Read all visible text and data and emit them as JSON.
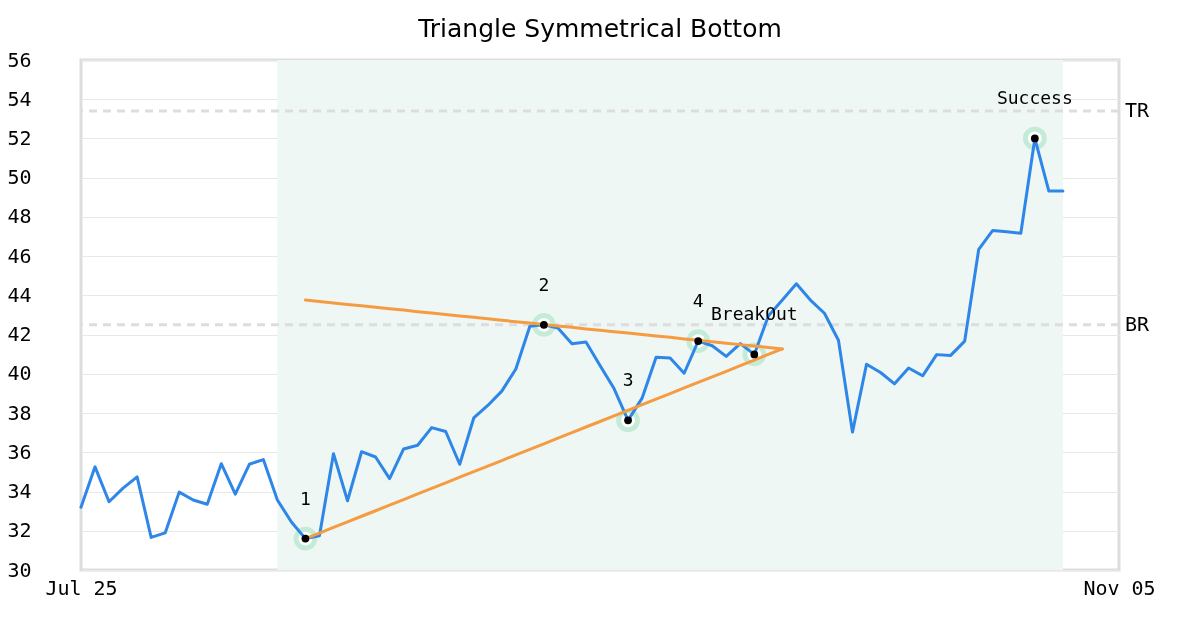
{
  "chart_data": {
    "type": "line",
    "title": "Triangle Symmetrical Bottom",
    "categories": [
      "Jul 25",
      null,
      null,
      null,
      null,
      null,
      null,
      null,
      null,
      null,
      null,
      null,
      null,
      null,
      null,
      null,
      null,
      null,
      null,
      null,
      null,
      null,
      null,
      null,
      null,
      null,
      null,
      null,
      null,
      null,
      null,
      null,
      null,
      null,
      null,
      null,
      null,
      null,
      null,
      null,
      null,
      null,
      null,
      null,
      null,
      null,
      null,
      null,
      null,
      null,
      null,
      null,
      null,
      null,
      null,
      null,
      null,
      null,
      null,
      null,
      null,
      null,
      null,
      null,
      null,
      null,
      null,
      null,
      null,
      null,
      null,
      null,
      null,
      null,
      "Nov 05"
    ],
    "ylim": [
      30,
      56
    ],
    "yticks": [
      30,
      32,
      34,
      36,
      38,
      40,
      42,
      44,
      46,
      48,
      50,
      52,
      54,
      56
    ],
    "series": [
      {
        "color": "#2e86e8",
        "values": [
          33.2,
          35.26,
          33.48,
          34.17,
          34.75,
          31.66,
          31.89,
          33.97,
          33.57,
          33.35,
          35.42,
          33.87,
          35.39,
          35.63,
          33.57,
          32.45,
          31.6,
          31.75,
          35.93,
          33.53,
          36.03,
          35.76,
          34.66,
          36.17,
          36.36,
          37.26,
          37.06,
          35.39,
          37.75,
          38.39,
          39.12,
          40.25,
          42.43,
          42.5,
          42.34,
          41.54,
          41.62,
          40.43,
          39.25,
          37.63,
          38.76,
          40.85,
          40.81,
          40.03,
          41.67,
          41.43,
          40.89,
          41.54,
          40.99,
          42.95,
          43.76,
          44.59,
          43.76,
          43.09,
          41.71,
          37.03,
          40.49,
          40.07,
          39.49,
          40.3,
          39.9,
          40.98,
          40.94,
          41.67,
          46.35,
          47.31,
          47.24,
          47.17,
          52,
          49.32,
          49.32,
          null,
          null,
          null,
          null
        ]
      },
      {
        "type": "line",
        "color": "#f59b42",
        "values": [
          null,
          null,
          null,
          null,
          null,
          null,
          null,
          null,
          null,
          null,
          null,
          null,
          null,
          null,
          null,
          null,
          43.76,
          43.69,
          43.61,
          43.54,
          43.47,
          43.39,
          43.32,
          43.25,
          43.17,
          43.1,
          43.03,
          42.95,
          42.88,
          42.81,
          42.73,
          42.66,
          42.59,
          42.51,
          42.44,
          42.37,
          42.29,
          42.22,
          42.15,
          42.08,
          42.0,
          41.93,
          41.86,
          41.78,
          41.71,
          41.64,
          41.56,
          41.49,
          41.42,
          41.34,
          41.27,
          null,
          null,
          null,
          null,
          null,
          null,
          null,
          null,
          null,
          null,
          null,
          null,
          null,
          null,
          null,
          null,
          null,
          null,
          null,
          null,
          null,
          null,
          null,
          null
        ]
      },
      {
        "type": "line",
        "color": "#f59b42",
        "values": [
          null,
          null,
          null,
          null,
          null,
          null,
          null,
          null,
          null,
          null,
          null,
          null,
          null,
          null,
          null,
          null,
          31.6,
          31.88,
          32.17,
          32.45,
          32.74,
          33.02,
          33.31,
          33.59,
          33.88,
          34.16,
          34.44,
          34.73,
          35.01,
          35.3,
          35.58,
          35.87,
          36.15,
          36.43,
          36.72,
          37.0,
          37.29,
          37.57,
          37.86,
          38.14,
          38.43,
          38.71,
          38.99,
          39.28,
          39.56,
          39.85,
          40.13,
          40.42,
          40.7,
          40.99,
          41.27,
          null,
          null,
          null,
          null,
          null,
          null,
          null,
          null,
          null,
          null,
          null,
          null,
          null,
          null,
          null,
          null,
          null,
          null,
          null,
          null,
          null,
          null,
          null,
          null
        ]
      },
      {
        "type": "scatter",
        "color": "#000000",
        "marker": "circle",
        "values": [
          null,
          null,
          null,
          null,
          null,
          null,
          null,
          null,
          null,
          null,
          null,
          null,
          null,
          null,
          null,
          null,
          31.6,
          null,
          null,
          null,
          null,
          null,
          null,
          null,
          null,
          null,
          null,
          null,
          null,
          null,
          null,
          null,
          null,
          42.5,
          null,
          null,
          null,
          null,
          null,
          37.63,
          null,
          null,
          null,
          null,
          41.67,
          null,
          null,
          null,
          40.99,
          null,
          null,
          null,
          null,
          null,
          null,
          null,
          null,
          null,
          null,
          null,
          null,
          null,
          null,
          null,
          null,
          null,
          null,
          null,
          52,
          null,
          null,
          null,
          null,
          null,
          null
        ]
      }
    ],
    "annotations": [
      "1",
      "2",
      "3",
      "4",
      "BreakOut",
      "Success"
    ],
    "ref_lines": [
      {
        "axis": "y",
        "value": 53.4,
        "label": "TR",
        "color": "#dddddd",
        "line_style": "dashed"
      },
      {
        "axis": "y",
        "value": 42.5,
        "label": "BR",
        "color": "#dddddd",
        "line_style": "dashed"
      }
    ],
    "grid": "y",
    "line_style": "solid"
  }
}
